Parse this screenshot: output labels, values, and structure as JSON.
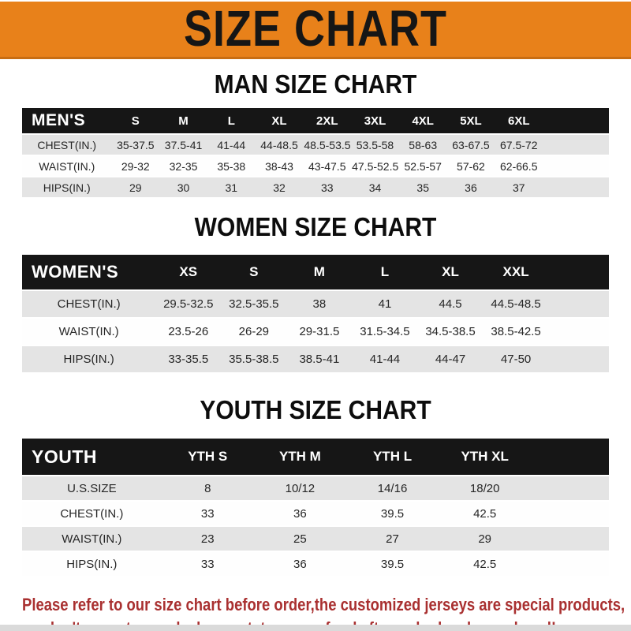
{
  "banner": {
    "title": "SIZE CHART"
  },
  "sections": {
    "man": {
      "heading": "MAN SIZE CHART"
    },
    "women": {
      "heading": "WOMEN SIZE CHART"
    },
    "youth": {
      "heading": "YOUTH SIZE CHART"
    }
  },
  "tables": {
    "man": {
      "header_label": "MEN'S",
      "sizes": [
        "S",
        "M",
        "L",
        "XL",
        "2XL",
        "3XL",
        "4XL",
        "5XL",
        "6XL"
      ],
      "trailing_spacer": true,
      "rows": [
        {
          "label": "CHEST(IN.)",
          "values": [
            "35-37.5",
            "37.5-41",
            "41-44",
            "44-48.5",
            "48.5-53.5",
            "53.5-58",
            "58-63",
            "63-67.5",
            "67.5-72"
          ]
        },
        {
          "label": "WAIST(IN.)",
          "values": [
            "29-32",
            "32-35",
            "35-38",
            "38-43",
            "43-47.5",
            "47.5-52.5",
            "52.5-57",
            "57-62",
            "62-66.5"
          ]
        },
        {
          "label": "HIPS(IN.)",
          "values": [
            "29",
            "30",
            "31",
            "32",
            "33",
            "34",
            "35",
            "36",
            "37"
          ]
        }
      ]
    },
    "women": {
      "header_label": "WOMEN'S",
      "sizes": [
        "XS",
        "S",
        "M",
        "L",
        "XL",
        "XXL"
      ],
      "trailing_spacer": true,
      "rows": [
        {
          "label": "CHEST(IN.)",
          "values": [
            "29.5-32.5",
            "32.5-35.5",
            "38",
            "41",
            "44.5",
            "44.5-48.5"
          ]
        },
        {
          "label": "WAIST(IN.)",
          "values": [
            "23.5-26",
            "26-29",
            "29-31.5",
            "31.5-34.5",
            "34.5-38.5",
            "38.5-42.5"
          ]
        },
        {
          "label": "HIPS(IN.)",
          "values": [
            "33-35.5",
            "35.5-38.5",
            "38.5-41",
            "41-44",
            "44-47",
            "47-50"
          ]
        }
      ]
    },
    "youth": {
      "header_label": "YOUTH",
      "sizes": [
        "YTH S",
        "YTH M",
        "YTH L",
        "YTH XL"
      ],
      "trailing_spacer": true,
      "rows": [
        {
          "label": "U.S.SIZE",
          "values": [
            "8",
            "10/12",
            "14/16",
            "18/20"
          ]
        },
        {
          "label": "CHEST(IN.)",
          "values": [
            "33",
            "36",
            "39.5",
            "42.5"
          ]
        },
        {
          "label": "WAIST(IN.)",
          "values": [
            "23",
            "25",
            "27",
            "29"
          ]
        },
        {
          "label": "HIPS(IN.)",
          "values": [
            "33",
            "36",
            "39.5",
            "42.5"
          ]
        }
      ]
    }
  },
  "disclaimer": {
    "line1": "Please refer to our size chart before order,the customized jerseys are special products,",
    "line2": "we don't accept cancel, change, teturn or refund after order has been placed!"
  },
  "colors": {
    "banner_bg": "#E8811A",
    "banner_edge": "#C86D12",
    "table_header_bg": "#161616",
    "row_alt_bg": "#E4E4E4",
    "row_bg": "#FFFFFF",
    "heading_text": "#0D0D0D",
    "disclaimer_text": "#A93030",
    "bottom_strip": "#DADADA"
  }
}
